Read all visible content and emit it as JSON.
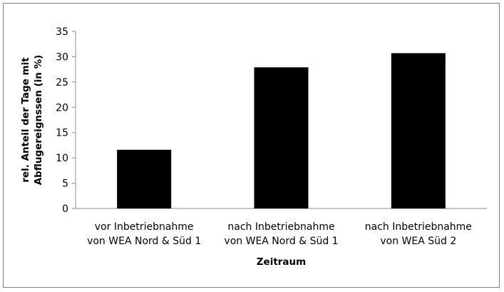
{
  "chart_data": {
    "type": "bar",
    "title": "",
    "xlabel": "Zeitraum",
    "ylabel_lines": [
      "rel. Anteil der Tage mit",
      "Abflugereignssen (in %)"
    ],
    "categories": [
      [
        "vor Inbetriebnahme",
        "von WEA Nord & Süd 1"
      ],
      [
        "nach Inbetriebnahme",
        "von WEA Nord & Süd 1"
      ],
      [
        "nach Inbetriebnahme",
        "von WEA Süd 2"
      ]
    ],
    "values": [
      11.6,
      27.9,
      30.7
    ],
    "ylim": [
      0,
      35
    ],
    "yticks": [
      "0",
      "5",
      "10",
      "15",
      "20",
      "25",
      "30",
      "35"
    ],
    "bar_color": "#000000",
    "grid": false,
    "legend": "none"
  }
}
